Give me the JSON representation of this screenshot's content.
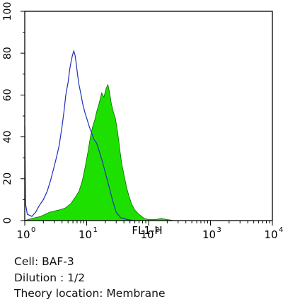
{
  "chart_data": {
    "type": "area",
    "xlabel": "FL1-H",
    "x_scale": "log",
    "xlim": [
      1,
      10000
    ],
    "ylim": [
      0,
      100
    ],
    "x_ticks": [
      {
        "value": 1,
        "base": "10",
        "exp": "0"
      },
      {
        "value": 10,
        "base": "10",
        "exp": "1"
      },
      {
        "value": 100,
        "base": "10",
        "exp": "2"
      },
      {
        "value": 1000,
        "base": "10",
        "exp": "3"
      },
      {
        "value": 10000,
        "base": "10",
        "exp": "4"
      }
    ],
    "y_ticks": [
      "0",
      "20",
      "40",
      "60",
      "80",
      "100"
    ],
    "y_tick_values": [
      0,
      20,
      40,
      60,
      80,
      100
    ],
    "series": [
      {
        "style": "outline",
        "color": "#1f2fb8",
        "points": [
          [
            1.0,
            45
          ],
          [
            1.03,
            8
          ],
          [
            1.1,
            3
          ],
          [
            1.3,
            2
          ],
          [
            1.5,
            4
          ],
          [
            1.7,
            7
          ],
          [
            2.0,
            10
          ],
          [
            2.3,
            14
          ],
          [
            2.6,
            19
          ],
          [
            3.0,
            26
          ],
          [
            3.3,
            31
          ],
          [
            3.6,
            36
          ],
          [
            4.0,
            45
          ],
          [
            4.3,
            52
          ],
          [
            4.6,
            60
          ],
          [
            5.0,
            66
          ],
          [
            5.3,
            72
          ],
          [
            5.6,
            76
          ],
          [
            5.9,
            79
          ],
          [
            6.2,
            81
          ],
          [
            6.5,
            79
          ],
          [
            6.8,
            75
          ],
          [
            7.1,
            70
          ],
          [
            7.5,
            65
          ],
          [
            8.0,
            61
          ],
          [
            8.6,
            56
          ],
          [
            9.3,
            52
          ],
          [
            10.0,
            49
          ],
          [
            11.0,
            45
          ],
          [
            12.0,
            42
          ],
          [
            13.0,
            39
          ],
          [
            14.5,
            37
          ],
          [
            16.0,
            33
          ],
          [
            18.0,
            28
          ],
          [
            20.0,
            23
          ],
          [
            23.0,
            16
          ],
          [
            26.0,
            10
          ],
          [
            30.0,
            4
          ],
          [
            35.0,
            1.5
          ],
          [
            45.0,
            0.5
          ],
          [
            60.0,
            0
          ]
        ]
      },
      {
        "style": "filled",
        "color": "#1ee000",
        "edge_color": "#0a6a00",
        "points": [
          [
            1.0,
            0
          ],
          [
            1.3,
            1
          ],
          [
            1.8,
            2
          ],
          [
            2.5,
            4
          ],
          [
            3.5,
            5
          ],
          [
            4.5,
            6
          ],
          [
            5.5,
            8
          ],
          [
            6.5,
            11
          ],
          [
            7.5,
            14
          ],
          [
            8.5,
            19
          ],
          [
            9.5,
            26
          ],
          [
            10.5,
            33
          ],
          [
            11.5,
            40
          ],
          [
            12.5,
            45
          ],
          [
            13.5,
            48
          ],
          [
            14.5,
            52
          ],
          [
            15.5,
            55
          ],
          [
            16.5,
            58
          ],
          [
            17.5,
            61
          ],
          [
            19.0,
            59
          ],
          [
            20.5,
            63
          ],
          [
            22.0,
            65
          ],
          [
            23.5,
            61
          ],
          [
            25.0,
            56
          ],
          [
            27.0,
            52
          ],
          [
            29.0,
            49
          ],
          [
            31.0,
            44
          ],
          [
            33.0,
            38
          ],
          [
            35.0,
            32
          ],
          [
            37.0,
            27
          ],
          [
            40.0,
            22
          ],
          [
            44.0,
            16
          ],
          [
            48.0,
            12
          ],
          [
            53.0,
            8
          ],
          [
            60.0,
            5
          ],
          [
            70.0,
            3
          ],
          [
            85.0,
            1
          ],
          [
            100.0,
            0.5
          ],
          [
            130.0,
            0.5
          ],
          [
            160.0,
            1
          ],
          [
            200.0,
            0.5
          ],
          [
            260.0,
            0
          ]
        ]
      }
    ]
  },
  "captions": {
    "cell": "Cell: BAF-3",
    "dilution": "Dilution : 1/2",
    "location": "Theory location: Membrane"
  }
}
